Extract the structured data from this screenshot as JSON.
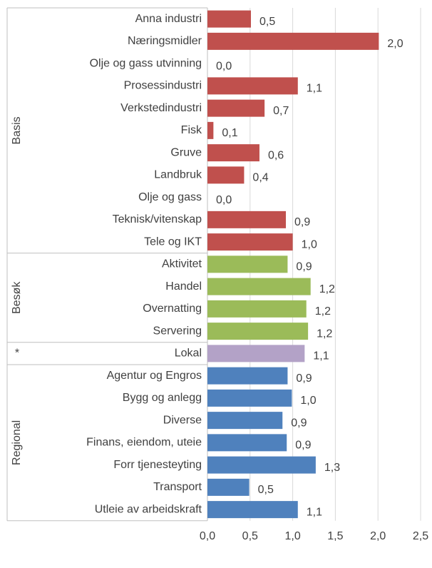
{
  "chart_data": {
    "type": "bar",
    "orientation": "horizontal",
    "series": [
      {
        "name": "Basis",
        "color": "#c0504d",
        "categories": [
          "Anna industri",
          "Næringsmidler",
          "Olje og gass utvinning",
          "Prosessindustri",
          "Verkstedindustri",
          "Fisk",
          "Gruve",
          "Landbruk",
          "Olje og gass",
          "Teknisk/vitenskap",
          "Tele og IKT"
        ],
        "values": [
          0.51,
          2.01,
          0,
          1.06,
          0.67,
          0.07,
          0.61,
          0.43,
          0,
          0.92,
          1.0
        ],
        "value_labels": [
          "0,5",
          "2,0",
          "0,0",
          "1,1",
          "0,7",
          "0,1",
          "0,6",
          "0,4",
          "0,0",
          "0,9",
          "1,0"
        ]
      },
      {
        "name": "Besøk",
        "color": "#9bbb59",
        "categories": [
          "Aktivitet",
          "Handel",
          "Overnatting",
          "Servering"
        ],
        "values": [
          0.94,
          1.21,
          1.16,
          1.18
        ],
        "value_labels": [
          "0,9",
          "1,2",
          "1,2",
          "1,2"
        ]
      },
      {
        "name": "*",
        "color": "#b3a2c7",
        "categories": [
          "Lokal"
        ],
        "values": [
          1.14
        ],
        "value_labels": [
          "1,1"
        ]
      },
      {
        "name": "Regional",
        "color": "#4f81bd",
        "categories": [
          "Agentur og Engros",
          "Bygg og anlegg",
          "Diverse",
          "Finans, eiendom, uteie",
          "Forr tjenesteyting",
          "Transport",
          "Utleie av arbeidskraft"
        ],
        "values": [
          0.94,
          0.99,
          0.88,
          0.93,
          1.27,
          0.49,
          1.06
        ],
        "value_labels": [
          "0,9",
          "1,0",
          "0,9",
          "0,9",
          "1,3",
          "0,5",
          "1,1"
        ]
      }
    ],
    "xlim": [
      0,
      2.5
    ],
    "xticks": [
      {
        "value": 0,
        "label": "0,0"
      },
      {
        "value": 0.5,
        "label": "0,5"
      },
      {
        "value": 1,
        "label": "1,0"
      },
      {
        "value": 1.5,
        "label": "1,5"
      },
      {
        "value": 2,
        "label": "2,0"
      },
      {
        "value": 2.5,
        "label": "2,5"
      }
    ],
    "grid": true
  }
}
